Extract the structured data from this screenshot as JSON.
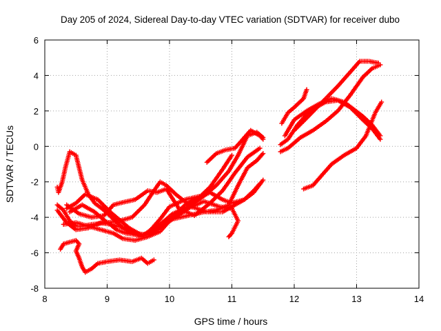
{
  "chart_data": {
    "type": "scatter",
    "title": "Day 205 of 2024, Sidereal Day-to-day VTEC variation (SDTVAR) for receiver dubo",
    "xlabel": "GPS time / hours",
    "ylabel": "SDTVAR / TECUs",
    "xlim": [
      8,
      14
    ],
    "ylim": [
      -8,
      6
    ],
    "xticks": [
      "8",
      "9",
      "10",
      "11",
      "12",
      "13",
      "14"
    ],
    "yticks": [
      "-8",
      "-6",
      "-4",
      "-2",
      "0",
      "2",
      "4",
      "6"
    ],
    "grid": true,
    "marker": "+",
    "color": "#ff0000",
    "series": [
      {
        "name": "track-1",
        "points": [
          [
            8.25,
            -5.8
          ],
          [
            8.3,
            -5.5
          ],
          [
            8.4,
            -5.4
          ],
          [
            8.5,
            -5.3
          ],
          [
            8.55,
            -5.5
          ],
          [
            8.5,
            -5.9
          ],
          [
            8.55,
            -6.3
          ],
          [
            8.6,
            -6.8
          ],
          [
            8.65,
            -7.1
          ],
          [
            8.75,
            -6.9
          ],
          [
            8.85,
            -6.6
          ],
          [
            9.0,
            -6.5
          ],
          [
            9.2,
            -6.4
          ],
          [
            9.4,
            -6.5
          ],
          [
            9.55,
            -6.3
          ],
          [
            9.65,
            -6.6
          ],
          [
            9.75,
            -6.4
          ]
        ]
      },
      {
        "name": "track-2",
        "points": [
          [
            8.2,
            -3.3
          ],
          [
            8.3,
            -3.6
          ],
          [
            8.4,
            -4.2
          ],
          [
            8.5,
            -4.5
          ],
          [
            8.6,
            -4.5
          ],
          [
            8.75,
            -4.4
          ],
          [
            9.0,
            -4.3
          ],
          [
            9.2,
            -4.2
          ],
          [
            9.4,
            -4.0
          ],
          [
            9.6,
            -3.3
          ],
          [
            9.75,
            -2.5
          ],
          [
            9.85,
            -2.0
          ],
          [
            9.95,
            -2.2
          ],
          [
            10.1,
            -2.7
          ],
          [
            10.35,
            -3.4
          ],
          [
            10.6,
            -3.7
          ],
          [
            10.85,
            -3.7
          ],
          [
            11.0,
            -3.4
          ],
          [
            11.2,
            -3.0
          ],
          [
            11.35,
            -2.5
          ],
          [
            11.45,
            -2.1
          ]
        ]
      },
      {
        "name": "track-3",
        "points": [
          [
            8.2,
            -2.3
          ],
          [
            8.22,
            -2.6
          ],
          [
            8.28,
            -2.0
          ],
          [
            8.33,
            -1.2
          ],
          [
            8.4,
            -0.3
          ],
          [
            8.5,
            -0.5
          ],
          [
            8.55,
            -1.2
          ],
          [
            8.6,
            -1.9
          ],
          [
            8.7,
            -2.7
          ],
          [
            8.8,
            -3.2
          ],
          [
            8.95,
            -3.6
          ],
          [
            9.1,
            -4.1
          ],
          [
            9.25,
            -4.6
          ],
          [
            9.4,
            -4.9
          ],
          [
            9.55,
            -5.1
          ],
          [
            9.7,
            -4.7
          ],
          [
            9.85,
            -4.1
          ],
          [
            10.0,
            -3.4
          ],
          [
            10.25,
            -3.0
          ],
          [
            10.5,
            -2.8
          ],
          [
            10.65,
            -2.3
          ],
          [
            10.85,
            -1.3
          ],
          [
            11.0,
            -0.5
          ]
        ]
      },
      {
        "name": "track-4",
        "points": [
          [
            8.2,
            -3.6
          ],
          [
            8.35,
            -4.3
          ],
          [
            8.5,
            -4.7
          ],
          [
            8.7,
            -4.6
          ],
          [
            8.9,
            -4.3
          ],
          [
            9.05,
            -4.4
          ],
          [
            9.15,
            -4.7
          ],
          [
            9.3,
            -4.9
          ],
          [
            9.5,
            -5.0
          ],
          [
            9.7,
            -4.9
          ],
          [
            9.85,
            -4.4
          ],
          [
            10.05,
            -3.8
          ],
          [
            10.3,
            -3.4
          ],
          [
            10.55,
            -2.8
          ],
          [
            10.75,
            -2.2
          ],
          [
            10.95,
            -1.4
          ],
          [
            11.1,
            -0.5
          ],
          [
            11.25,
            0.6
          ],
          [
            11.4,
            0.8
          ],
          [
            11.5,
            0.5
          ]
        ]
      },
      {
        "name": "track-5",
        "points": [
          [
            8.3,
            -4.4
          ],
          [
            8.5,
            -4.3
          ],
          [
            8.7,
            -4.5
          ],
          [
            8.9,
            -4.7
          ],
          [
            9.1,
            -4.9
          ],
          [
            9.25,
            -5.2
          ],
          [
            9.45,
            -5.3
          ],
          [
            9.65,
            -5.1
          ],
          [
            9.85,
            -4.8
          ],
          [
            10.05,
            -4.0
          ],
          [
            10.25,
            -3.3
          ],
          [
            10.45,
            -2.9
          ],
          [
            10.65,
            -2.6
          ],
          [
            10.85,
            -3.0
          ],
          [
            11.0,
            -3.2
          ],
          [
            11.2,
            -3.0
          ],
          [
            11.35,
            -2.6
          ],
          [
            11.5,
            -1.9
          ]
        ]
      },
      {
        "name": "track-6",
        "points": [
          [
            8.35,
            -3.5
          ],
          [
            8.5,
            -3.2
          ],
          [
            8.65,
            -2.7
          ],
          [
            8.85,
            -3.0
          ],
          [
            9.05,
            -3.7
          ],
          [
            9.25,
            -4.3
          ],
          [
            9.45,
            -4.9
          ],
          [
            9.65,
            -5.0
          ],
          [
            9.85,
            -4.6
          ],
          [
            10.05,
            -4.1
          ],
          [
            10.3,
            -3.9
          ],
          [
            10.55,
            -3.7
          ],
          [
            10.75,
            -3.6
          ],
          [
            10.95,
            -3.3
          ],
          [
            11.1,
            -2.2
          ],
          [
            11.25,
            -1.2
          ],
          [
            11.4,
            -0.8
          ],
          [
            11.5,
            -0.4
          ]
        ]
      },
      {
        "name": "track-7",
        "points": [
          [
            8.35,
            -3.3
          ],
          [
            8.55,
            -3.8
          ],
          [
            8.75,
            -4.0
          ],
          [
            8.95,
            -3.9
          ],
          [
            9.1,
            -3.3
          ],
          [
            9.2,
            -3.2
          ],
          [
            9.45,
            -3.0
          ],
          [
            9.65,
            -2.5
          ],
          [
            9.8,
            -2.6
          ],
          [
            9.95,
            -2.4
          ],
          [
            10.15,
            -3.5
          ],
          [
            10.4,
            -3.9
          ],
          [
            10.65,
            -3.2
          ],
          [
            10.85,
            -2.5
          ],
          [
            11.05,
            -1.5
          ],
          [
            11.25,
            -0.6
          ],
          [
            11.45,
            -0.1
          ]
        ]
      },
      {
        "name": "track-8",
        "points": [
          [
            8.4,
            -3.7
          ],
          [
            8.6,
            -3.3
          ],
          [
            8.8,
            -3.7
          ],
          [
            9.0,
            -4.3
          ],
          [
            9.15,
            -4.5
          ],
          [
            9.35,
            -4.6
          ],
          [
            9.55,
            -5.0
          ],
          [
            9.7,
            -4.9
          ],
          [
            9.85,
            -4.5
          ],
          [
            10.05,
            -4.1
          ],
          [
            10.3,
            -3.5
          ],
          [
            10.55,
            -3.1
          ],
          [
            10.8,
            -3.4
          ],
          [
            11.0,
            -3.5
          ],
          [
            11.1,
            -4.2
          ],
          [
            11.0,
            -4.9
          ],
          [
            10.95,
            -5.1
          ]
        ]
      },
      {
        "name": "track-9",
        "points": [
          [
            10.6,
            -0.9
          ],
          [
            10.75,
            -0.4
          ],
          [
            10.9,
            -0.2
          ],
          [
            11.05,
            -0.1
          ],
          [
            11.15,
            0.3
          ],
          [
            11.3,
            0.9
          ],
          [
            11.45,
            0.6
          ],
          [
            11.5,
            0.4
          ]
        ]
      },
      {
        "name": "track-10",
        "points": [
          [
            11.8,
            1.3
          ],
          [
            11.9,
            1.9
          ],
          [
            12.0,
            2.2
          ],
          [
            12.15,
            2.7
          ],
          [
            12.2,
            3.2
          ]
        ]
      },
      {
        "name": "track-11",
        "points": [
          [
            11.78,
            0.1
          ],
          [
            11.9,
            0.4
          ],
          [
            12.05,
            1.2
          ],
          [
            12.2,
            1.8
          ],
          [
            12.35,
            2.2
          ],
          [
            12.5,
            2.5
          ],
          [
            12.7,
            2.6
          ],
          [
            12.9,
            2.2
          ],
          [
            13.1,
            1.5
          ],
          [
            13.25,
            1.0
          ],
          [
            13.38,
            0.4
          ]
        ]
      },
      {
        "name": "track-12",
        "points": [
          [
            11.78,
            -0.3
          ],
          [
            11.9,
            -0.1
          ],
          [
            12.1,
            0.5
          ],
          [
            12.3,
            0.9
          ],
          [
            12.5,
            1.4
          ],
          [
            12.7,
            2.0
          ],
          [
            12.9,
            2.9
          ],
          [
            13.1,
            3.9
          ],
          [
            13.25,
            4.4
          ],
          [
            13.38,
            4.6
          ]
        ]
      },
      {
        "name": "track-13",
        "points": [
          [
            11.85,
            0.6
          ],
          [
            12.0,
            1.5
          ],
          [
            12.2,
            2.0
          ],
          [
            12.4,
            2.4
          ],
          [
            12.6,
            2.7
          ],
          [
            12.8,
            2.5
          ],
          [
            12.95,
            2.1
          ],
          [
            13.1,
            1.7
          ],
          [
            13.25,
            1.2
          ],
          [
            13.38,
            0.6
          ]
        ]
      },
      {
        "name": "track-14",
        "points": [
          [
            12.0,
            0.9
          ],
          [
            12.2,
            1.6
          ],
          [
            12.45,
            2.5
          ],
          [
            12.7,
            3.4
          ],
          [
            12.9,
            4.2
          ],
          [
            13.05,
            4.8
          ],
          [
            13.2,
            4.8
          ],
          [
            13.35,
            4.7
          ]
        ]
      },
      {
        "name": "track-15",
        "points": [
          [
            12.15,
            -2.4
          ],
          [
            12.3,
            -2.2
          ],
          [
            12.45,
            -1.6
          ],
          [
            12.6,
            -1.0
          ],
          [
            12.8,
            -0.5
          ],
          [
            13.0,
            -0.1
          ],
          [
            13.15,
            0.6
          ],
          [
            13.3,
            1.9
          ],
          [
            13.4,
            2.5
          ]
        ]
      }
    ]
  }
}
